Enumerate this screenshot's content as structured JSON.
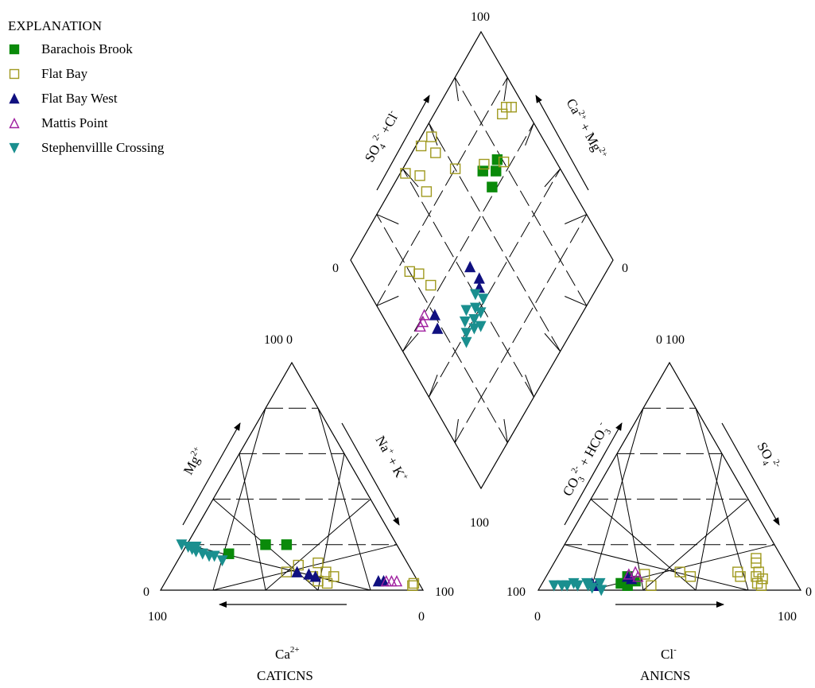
{
  "legend": {
    "title": "EXPLANATION",
    "items": [
      {
        "name": "Barachois Brook",
        "marker": "filled-square",
        "color": "#0a8a0a"
      },
      {
        "name": "Flat Bay",
        "marker": "open-square",
        "color": "#a09a20"
      },
      {
        "name": "Flat Bay West",
        "marker": "filled-triangle-up",
        "color": "#101080"
      },
      {
        "name": "Mattis Point",
        "marker": "open-triangle-up",
        "color": "#a020a0"
      },
      {
        "name": "Stephenvillle Crossing",
        "marker": "filled-triangle-down",
        "color": "#1a8f8f"
      }
    ]
  },
  "ticks": {
    "diamond_top": "100",
    "diamond_left": "0",
    "diamond_right": "0",
    "diamond_bottom": "100",
    "cation_apex": "100 0",
    "cation_left": "0",
    "cation_right": "100",
    "cation_bottom_left": "100",
    "cation_bottom_right": "0",
    "anion_apex": "0 100",
    "anion_left": "100",
    "anion_right": "0",
    "anion_bottom_left": "0",
    "anion_bottom_right": "100"
  },
  "labels": {
    "diamond_left_axis": {
      "a": "SO",
      "sub": "4",
      "sup": "2-",
      "b": " +Cl",
      "sup2": "-"
    },
    "diamond_right_axis": {
      "a": "Ca",
      "sup": "2+",
      "b": " + Mg",
      "sup2": "2+"
    },
    "cation_left_axis": {
      "a": "Mg",
      "sup": "2+"
    },
    "cation_right_axis": {
      "a": "Na",
      "sup": "+",
      "b": " + K",
      "sup2": "+"
    },
    "cation_bottom": {
      "a": "Ca",
      "sup": "2+",
      "name": "CATICNS"
    },
    "anion_left_axis": {
      "a": "CO",
      "sub": "3",
      "sup": "2-",
      "b": " + HCO",
      "sub2": "3",
      "sup2": "-"
    },
    "anion_right_axis": {
      "a": "SO",
      "sub": "4",
      "sup": "2-"
    },
    "anion_bottom": {
      "a": "Cl",
      "sup": "-",
      "name": "ANICNS"
    }
  },
  "chart_data": {
    "type": "scatter",
    "subtype": "piper-diagram",
    "cation_axes": [
      "Ca",
      "Mg",
      "Na+K"
    ],
    "anion_axes": [
      "Cl",
      "SO4",
      "CO3+HCO3"
    ],
    "grid_step_percent": 20,
    "series": [
      {
        "name": "Barachois Brook",
        "cations": [
          [
            50,
            20,
            30
          ],
          [
            42,
            20,
            38
          ],
          [
            66,
            16,
            18
          ]
        ],
        "anions": [
          [
            33,
            2,
            65
          ],
          [
            35,
            4,
            61
          ],
          [
            31,
            6,
            63
          ],
          [
            30,
            3,
            67
          ]
        ]
      },
      {
        "name": "Flat Bay",
        "cations": [
          [
            42,
            11,
            47
          ],
          [
            48,
            8,
            44
          ],
          [
            34,
            12,
            54
          ],
          [
            33,
            8,
            59
          ],
          [
            39,
            6,
            55
          ],
          [
            31,
            6,
            63
          ],
          [
            38,
            4,
            58
          ],
          [
            35,
            3,
            62
          ],
          [
            3,
            2,
            95
          ],
          [
            2,
            3,
            95
          ]
        ],
        "anions": [
          [
            42,
            2,
            56
          ],
          [
            37,
            7,
            56
          ],
          [
            50,
            8,
            42
          ],
          [
            55,
            6,
            39
          ],
          [
            74,
            6,
            20
          ],
          [
            72,
            8,
            20
          ],
          [
            80,
            8,
            12
          ],
          [
            77,
            12,
            11
          ],
          [
            76,
            14,
            10
          ],
          [
            80,
            6,
            14
          ],
          [
            83,
            5,
            12
          ],
          [
            82,
            3,
            15
          ],
          [
            84,
            2,
            14
          ]
        ]
      },
      {
        "name": "Flat Bay West",
        "cations": [
          [
            44,
            8,
            48
          ],
          [
            40,
            7,
            53
          ],
          [
            38,
            6,
            56
          ],
          [
            15,
            4,
            81
          ],
          [
            13,
            4,
            83
          ]
        ],
        "anions": [
          [
            33,
            5,
            62
          ],
          [
            31,
            6,
            63
          ],
          [
            21,
            2,
            77
          ],
          [
            19,
            3,
            78
          ]
        ]
      },
      {
        "name": "Mattis Point",
        "cations": [
          [
            12,
            4,
            84
          ],
          [
            10,
            4,
            86
          ],
          [
            8,
            4,
            88
          ]
        ],
        "anions": [
          [
            33,
            8,
            59
          ],
          [
            31,
            7,
            62
          ],
          [
            35,
            6,
            59
          ]
        ]
      },
      {
        "name": "Stephenvillle Crossing",
        "cations": [
          [
            80,
            19,
            1
          ],
          [
            79,
            18,
            3
          ],
          [
            78,
            17,
            5
          ],
          [
            76,
            16,
            8
          ],
          [
            74,
            15,
            11
          ],
          [
            72,
            15,
            13
          ],
          [
            70,
            13,
            17
          ],
          [
            82,
            20,
            -2
          ],
          [
            77,
            19,
            4
          ]
        ],
        "anions": [
          [
            5,
            2,
            93
          ],
          [
            8,
            2,
            90
          ],
          [
            10,
            2,
            88
          ],
          [
            12,
            3,
            85
          ],
          [
            14,
            2,
            84
          ],
          [
            17,
            3,
            80
          ],
          [
            20,
            1,
            79
          ],
          [
            22,
            3,
            75
          ],
          [
            24,
            0,
            76
          ],
          [
            18,
            2,
            80
          ]
        ]
      }
    ],
    "diamond_points": [
      {
        "series": "Barachois Brook",
        "pts": [
          [
            30,
            38
          ],
          [
            25,
            36
          ],
          [
            30,
            31
          ],
          [
            22,
            34
          ]
        ]
      },
      {
        "series": "Flat Bay",
        "pts": [
          [
            48,
            2
          ],
          [
            55,
            8
          ],
          [
            44,
            9
          ],
          [
            60,
            2
          ],
          [
            42,
            4
          ],
          [
            56,
            14
          ],
          [
            80,
            25
          ],
          [
            77,
            29
          ],
          [
            75,
            36
          ],
          [
            40,
            20
          ],
          [
            20,
            37
          ],
          [
            28,
            30
          ],
          [
            5,
            28
          ],
          [
            7,
            26
          ],
          [
            10,
            26
          ]
        ]
      },
      {
        "series": "Flat Bay West",
        "pts": [
          [
            56,
            47
          ],
          [
            55,
            53
          ],
          [
            57,
            55
          ],
          [
            80,
            44
          ],
          [
            82,
            48
          ]
        ]
      },
      {
        "series": "Mattis Point",
        "pts": [
          [
            84,
            40
          ],
          [
            86,
            41
          ],
          [
            88,
            41
          ]
        ]
      },
      {
        "series": "Stephenvillle Crossing",
        "pts": [
          [
            72,
            60
          ],
          [
            68,
            62
          ],
          [
            66,
            60
          ],
          [
            63,
            58
          ],
          [
            60,
            55
          ],
          [
            65,
            64
          ],
          [
            70,
            57
          ],
          [
            62,
            61
          ],
          [
            58,
            59
          ],
          [
            74,
            62
          ],
          [
            67,
            55
          ]
        ]
      }
    ]
  }
}
